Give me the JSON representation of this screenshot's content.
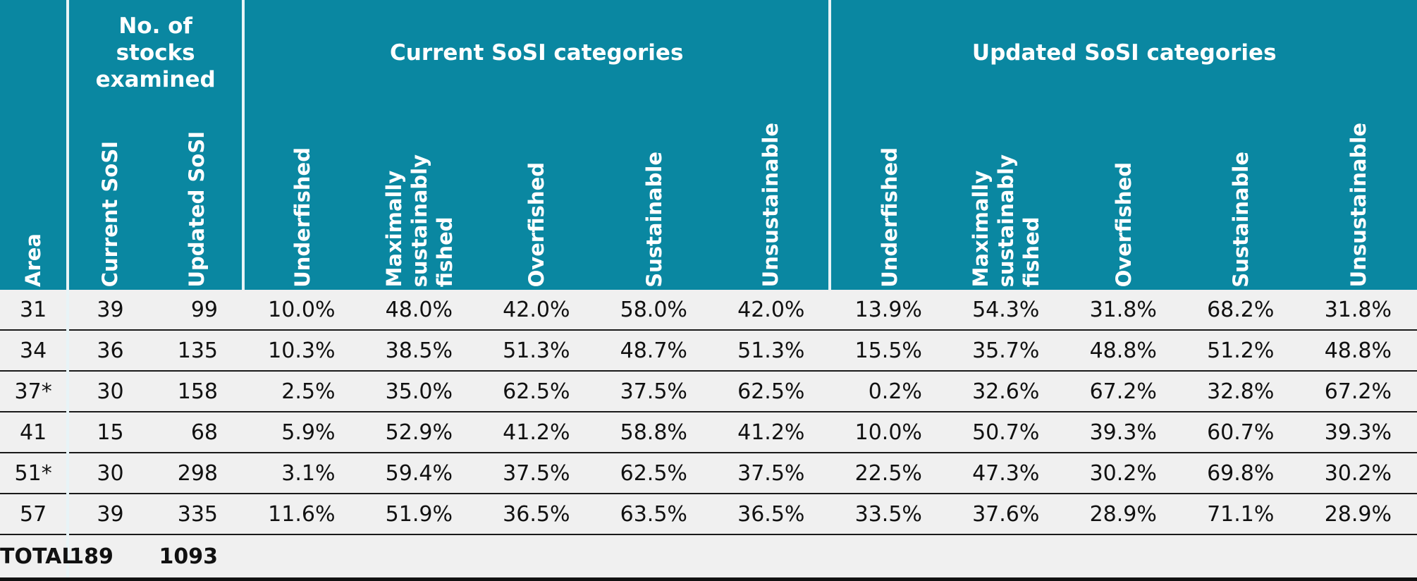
{
  "header": {
    "area": "Area",
    "stocks_group": "No. of stocks examined",
    "current_group": "Current SoSI categories",
    "updated_group": "Updated SoSI categories",
    "stock_cols": [
      "Current SoSI",
      "Updated SoSI"
    ],
    "category_cols": [
      "Underfished",
      "Maximally sustainably fished",
      "Overfished",
      "Sustainable",
      "Unsustainable"
    ]
  },
  "rows": [
    {
      "area": "31",
      "current": "39",
      "updated": "99",
      "cur": [
        "10.0%",
        "48.0%",
        "42.0%",
        "58.0%",
        "42.0%"
      ],
      "upd": [
        "13.9%",
        "54.3%",
        "31.8%",
        "68.2%",
        "31.8%"
      ]
    },
    {
      "area": "34",
      "current": "36",
      "updated": "135",
      "cur": [
        "10.3%",
        "38.5%",
        "51.3%",
        "48.7%",
        "51.3%"
      ],
      "upd": [
        "15.5%",
        "35.7%",
        "48.8%",
        "51.2%",
        "48.8%"
      ]
    },
    {
      "area": "37*",
      "current": "30",
      "updated": "158",
      "cur": [
        "2.5%",
        "35.0%",
        "62.5%",
        "37.5%",
        "62.5%"
      ],
      "upd": [
        "0.2%",
        "32.6%",
        "67.2%",
        "32.8%",
        "67.2%"
      ]
    },
    {
      "area": "41",
      "current": "15",
      "updated": "68",
      "cur": [
        "5.9%",
        "52.9%",
        "41.2%",
        "58.8%",
        "41.2%"
      ],
      "upd": [
        "10.0%",
        "50.7%",
        "39.3%",
        "60.7%",
        "39.3%"
      ]
    },
    {
      "area": "51*",
      "current": "30",
      "updated": "298",
      "cur": [
        "3.1%",
        "59.4%",
        "37.5%",
        "62.5%",
        "37.5%"
      ],
      "upd": [
        "22.5%",
        "47.3%",
        "30.2%",
        "69.8%",
        "30.2%"
      ]
    },
    {
      "area": "57",
      "current": "39",
      "updated": "335",
      "cur": [
        "11.6%",
        "51.9%",
        "36.5%",
        "63.5%",
        "36.5%"
      ],
      "upd": [
        "33.5%",
        "37.6%",
        "28.9%",
        "71.1%",
        "28.9%"
      ]
    }
  ],
  "total": {
    "label": "TOTAL",
    "current": "189",
    "updated": "1093"
  },
  "colors": {
    "header_bg": "#0a87a1",
    "header_text": "#ffffff",
    "body_bg": "#f0f0f0",
    "rule": "#1a1a1a"
  }
}
